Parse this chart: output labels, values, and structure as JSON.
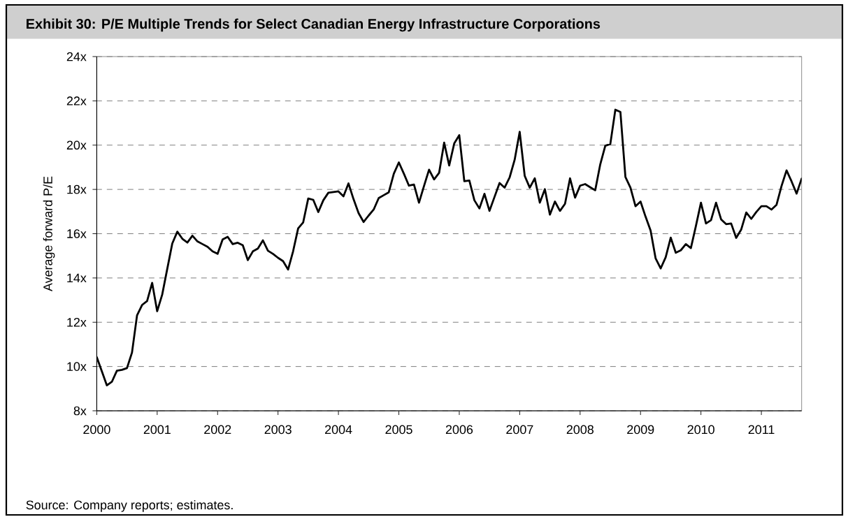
{
  "chart_data": {
    "type": "line",
    "title": "Exhibit 30: P/E Multiple Trends for Select Canadian Energy Infrastructure Corporations",
    "ylabel": "Average forward P/E",
    "annotations": [
      "Source: Company reports; estimates."
    ],
    "x": [
      "2000-01",
      "2000-02",
      "2000-03",
      "2000-04",
      "2000-05",
      "2000-06",
      "2000-07",
      "2000-08",
      "2000-09",
      "2000-10",
      "2000-11",
      "2000-12",
      "2001-01",
      "2001-02",
      "2001-03",
      "2001-04",
      "2001-05",
      "2001-06",
      "2001-07",
      "2001-08",
      "2001-09",
      "2001-10",
      "2001-11",
      "2001-12",
      "2002-01",
      "2002-02",
      "2002-03",
      "2002-04",
      "2002-05",
      "2002-06",
      "2002-07",
      "2002-08",
      "2002-09",
      "2002-10",
      "2002-11",
      "2002-12",
      "2003-01",
      "2003-02",
      "2003-03",
      "2003-04",
      "2003-05",
      "2003-06",
      "2003-07",
      "2003-08",
      "2003-09",
      "2003-10",
      "2003-11",
      "2003-12",
      "2004-01",
      "2004-02",
      "2004-03",
      "2004-04",
      "2004-05",
      "2004-06",
      "2004-07",
      "2004-08",
      "2004-09",
      "2004-10",
      "2004-11",
      "2004-12",
      "2005-01",
      "2005-02",
      "2005-03",
      "2005-04",
      "2005-05",
      "2005-06",
      "2005-07",
      "2005-08",
      "2005-09",
      "2005-10",
      "2005-11",
      "2005-12",
      "2006-01",
      "2006-02",
      "2006-03",
      "2006-04",
      "2006-05",
      "2006-06",
      "2006-07",
      "2006-08",
      "2006-09",
      "2006-10",
      "2006-11",
      "2006-12",
      "2007-01",
      "2007-02",
      "2007-03",
      "2007-04",
      "2007-05",
      "2007-06",
      "2007-07",
      "2007-08",
      "2007-09",
      "2007-10",
      "2007-11",
      "2007-12",
      "2008-01",
      "2008-02",
      "2008-03",
      "2008-04",
      "2008-05",
      "2008-06",
      "2008-07",
      "2008-08",
      "2008-09",
      "2008-10",
      "2008-11",
      "2008-12",
      "2009-01",
      "2009-02",
      "2009-03",
      "2009-04",
      "2009-05",
      "2009-06",
      "2009-07",
      "2009-08",
      "2009-09",
      "2009-10",
      "2009-11",
      "2009-12",
      "2010-01",
      "2010-02",
      "2010-03",
      "2010-04",
      "2010-05",
      "2010-06",
      "2010-07",
      "2010-08",
      "2010-09",
      "2010-10",
      "2010-11",
      "2010-12",
      "2011-01",
      "2011-02",
      "2011-03",
      "2011-04",
      "2011-05",
      "2011-06",
      "2011-07",
      "2011-08",
      "2011-09"
    ],
    "values": [
      10.42,
      9.79,
      9.15,
      9.31,
      9.81,
      9.85,
      9.93,
      10.63,
      12.31,
      12.78,
      12.96,
      13.78,
      12.5,
      13.25,
      14.41,
      15.56,
      16.09,
      15.77,
      15.6,
      15.91,
      15.65,
      15.53,
      15.41,
      15.2,
      15.09,
      15.74,
      15.86,
      15.53,
      15.59,
      15.48,
      14.81,
      15.2,
      15.33,
      15.7,
      15.23,
      15.09,
      14.91,
      14.76,
      14.38,
      15.21,
      16.24,
      16.51,
      17.59,
      17.53,
      16.98,
      17.51,
      17.85,
      17.88,
      17.91,
      17.69,
      18.27,
      17.56,
      16.93,
      16.53,
      16.82,
      17.09,
      17.61,
      17.74,
      17.87,
      18.71,
      19.22,
      18.71,
      18.17,
      18.22,
      17.4,
      18.16,
      18.89,
      18.45,
      18.75,
      20.11,
      19.08,
      20.08,
      20.45,
      18.37,
      18.4,
      17.51,
      17.14,
      17.8,
      17.03,
      17.66,
      18.29,
      18.08,
      18.54,
      19.34,
      20.6,
      18.61,
      18.08,
      18.5,
      17.4,
      18.01,
      16.86,
      17.45,
      17.03,
      17.35,
      18.5,
      17.63,
      18.17,
      18.24,
      18.1,
      17.96,
      19.13,
      19.97,
      20.05,
      21.6,
      21.5,
      18.56,
      18.08,
      17.24,
      17.45,
      16.77,
      16.14,
      14.88,
      14.43,
      14.94,
      15.82,
      15.14,
      15.25,
      15.53,
      15.35,
      16.35,
      17.4,
      16.46,
      16.61,
      17.4,
      16.65,
      16.43,
      16.46,
      15.81,
      16.19,
      16.96,
      16.67,
      16.98,
      17.24,
      17.24,
      17.09,
      17.3,
      18.15,
      18.86,
      18.36,
      17.81,
      18.49
    ],
    "color": "#000000",
    "line_style": "solid",
    "xlim": [
      "2000-01",
      "2011-09"
    ],
    "xticks": [
      "2000",
      "2001",
      "2002",
      "2003",
      "2004",
      "2005",
      "2006",
      "2007",
      "2008",
      "2009",
      "2010",
      "2011"
    ],
    "ylim": [
      8,
      24
    ],
    "yticks": [
      {
        "value": 8,
        "label": "8x"
      },
      {
        "value": 10,
        "label": "10x"
      },
      {
        "value": 12,
        "label": "12x"
      },
      {
        "value": 14,
        "label": "14x"
      },
      {
        "value": 16,
        "label": "16x"
      },
      {
        "value": 18,
        "label": "18x"
      },
      {
        "value": 20,
        "label": "20x"
      },
      {
        "value": 22,
        "label": "22x"
      },
      {
        "value": 24,
        "label": "24x"
      }
    ],
    "grid": "y"
  }
}
